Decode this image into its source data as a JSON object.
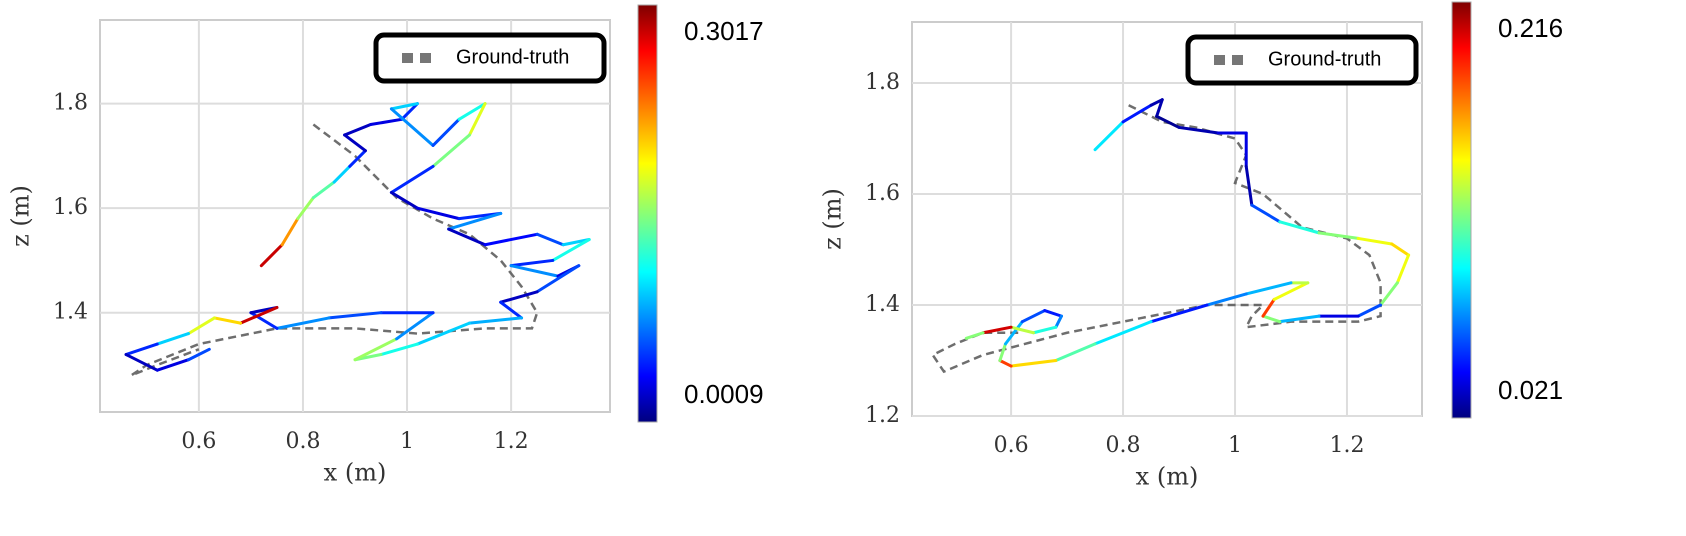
{
  "chart_data": [
    {
      "type": "line",
      "xlabel": "x (m)",
      "ylabel": "z (m)",
      "xlim": [
        0.41,
        1.39
      ],
      "ylim": [
        1.21,
        1.96
      ],
      "xticks": [
        0.6,
        0.8,
        1.0,
        1.2
      ],
      "yticks": [
        1.4,
        1.6,
        1.8
      ],
      "grid": true,
      "legend": "upper right",
      "colorbar": {
        "min": 0.0009,
        "max": 0.3017,
        "colormap": "jet"
      },
      "series": [
        {
          "name": "Ground-truth",
          "color": "#555555",
          "dashed": true,
          "x": [
            0.82,
            0.9,
            0.98,
            1.05,
            1.12,
            1.18,
            1.22,
            1.25,
            1.24,
            1.15,
            1.02,
            0.9,
            0.75,
            0.6,
            0.5,
            0.47,
            0.52,
            0.6
          ],
          "values": [
            1.76,
            1.7,
            1.62,
            1.58,
            1.55,
            1.5,
            1.45,
            1.4,
            1.37,
            1.37,
            1.36,
            1.37,
            1.37,
            1.34,
            1.3,
            1.28,
            1.3,
            1.33
          ]
        },
        {
          "x": [
            0.72,
            0.76,
            0.79,
            0.82,
            0.86,
            0.89,
            0.92,
            0.88,
            0.93,
            0.99,
            1.02,
            0.97,
            1.05,
            1.1,
            1.15,
            1.12,
            1.05,
            0.97,
            1.02,
            1.1,
            1.18,
            1.08,
            1.15,
            1.25,
            1.3,
            1.35,
            1.28,
            1.2,
            1.29,
            1.33,
            1.25,
            1.18,
            1.22,
            1.12,
            1.02,
            0.95,
            0.9,
            0.98,
            1.05,
            0.95,
            0.85,
            0.75,
            0.7,
            0.75,
            0.68,
            0.63,
            0.58,
            0.52,
            0.46,
            0.52,
            0.58,
            0.62
          ],
          "values": [
            1.49,
            1.53,
            1.58,
            1.62,
            1.65,
            1.68,
            1.71,
            1.74,
            1.76,
            1.77,
            1.8,
            1.79,
            1.72,
            1.77,
            1.8,
            1.74,
            1.68,
            1.63,
            1.6,
            1.58,
            1.59,
            1.56,
            1.53,
            1.55,
            1.53,
            1.54,
            1.5,
            1.49,
            1.47,
            1.49,
            1.44,
            1.42,
            1.39,
            1.38,
            1.34,
            1.32,
            1.31,
            1.35,
            1.4,
            1.4,
            1.39,
            1.37,
            1.4,
            1.41,
            1.38,
            1.39,
            1.36,
            1.34,
            1.32,
            1.29,
            1.31,
            1.33
          ],
          "error": [
            0.28,
            0.22,
            0.16,
            0.14,
            0.1,
            0.05,
            0.02,
            0.02,
            0.03,
            0.05,
            0.1,
            0.08,
            0.06,
            0.12,
            0.18,
            0.15,
            0.05,
            0.02,
            0.03,
            0.05,
            0.08,
            0.02,
            0.04,
            0.06,
            0.1,
            0.12,
            0.05,
            0.08,
            0.03,
            0.06,
            0.02,
            0.05,
            0.09,
            0.1,
            0.12,
            0.15,
            0.16,
            0.08,
            0.05,
            0.06,
            0.08,
            0.05,
            0.02,
            0.28,
            0.2,
            0.18,
            0.1,
            0.05,
            0.02,
            0.03,
            0.06,
            0.04
          ]
        }
      ]
    },
    {
      "type": "line",
      "xlabel": "x (m)",
      "ylabel": "z (m)",
      "xlim": [
        0.423,
        1.334
      ],
      "ylim": [
        1.2,
        1.91
      ],
      "xticks": [
        0.6,
        0.8,
        1.0,
        1.2
      ],
      "yticks": [
        1.2,
        1.4,
        1.6,
        1.8
      ],
      "grid": true,
      "legend": "upper right",
      "colorbar": {
        "min": 0.021,
        "max": 0.216,
        "colormap": "jet"
      },
      "series": [
        {
          "name": "Ground-truth",
          "color": "#555555",
          "dashed": true,
          "x": [
            0.81,
            0.87,
            0.93,
            1.0,
            1.02,
            1.0,
            1.05,
            1.12,
            1.2,
            1.24,
            1.26,
            1.26,
            1.22,
            1.1,
            1.02,
            1.03,
            1.05,
            0.95,
            0.85,
            0.7,
            0.55,
            0.48,
            0.46,
            0.5,
            0.55,
            0.6,
            0.62
          ],
          "values": [
            1.76,
            1.73,
            1.72,
            1.7,
            1.67,
            1.62,
            1.6,
            1.54,
            1.52,
            1.49,
            1.44,
            1.38,
            1.37,
            1.37,
            1.36,
            1.38,
            1.4,
            1.4,
            1.38,
            1.35,
            1.31,
            1.28,
            1.31,
            1.33,
            1.35,
            1.35,
            1.35
          ]
        },
        {
          "x": [
            0.75,
            0.8,
            0.85,
            0.87,
            0.86,
            0.9,
            0.97,
            1.02,
            1.02,
            1.03,
            1.08,
            1.15,
            1.22,
            1.28,
            1.31,
            1.29,
            1.26,
            1.22,
            1.15,
            1.08,
            1.05,
            1.07,
            1.13,
            1.1,
            1.02,
            0.95,
            0.85,
            0.75,
            0.68,
            0.6,
            0.58,
            0.59,
            0.62,
            0.66,
            0.69,
            0.68,
            0.64,
            0.6,
            0.55,
            0.52
          ],
          "values": [
            1.68,
            1.73,
            1.76,
            1.77,
            1.74,
            1.72,
            1.71,
            1.71,
            1.65,
            1.58,
            1.55,
            1.53,
            1.52,
            1.51,
            1.49,
            1.44,
            1.4,
            1.38,
            1.38,
            1.37,
            1.38,
            1.41,
            1.44,
            1.44,
            1.42,
            1.4,
            1.37,
            1.33,
            1.3,
            1.29,
            1.3,
            1.33,
            1.37,
            1.39,
            1.38,
            1.36,
            1.35,
            1.36,
            1.35,
            1.34
          ],
          "error": [
            0.09,
            0.05,
            0.03,
            0.03,
            0.025,
            0.03,
            0.04,
            0.04,
            0.03,
            0.06,
            0.1,
            0.12,
            0.14,
            0.15,
            0.14,
            0.12,
            0.06,
            0.04,
            0.08,
            0.12,
            0.18,
            0.14,
            0.13,
            0.08,
            0.07,
            0.05,
            0.09,
            0.11,
            0.15,
            0.18,
            0.12,
            0.08,
            0.06,
            0.05,
            0.07,
            0.1,
            0.13,
            0.2,
            0.12,
            0.05
          ]
        }
      ]
    }
  ]
}
